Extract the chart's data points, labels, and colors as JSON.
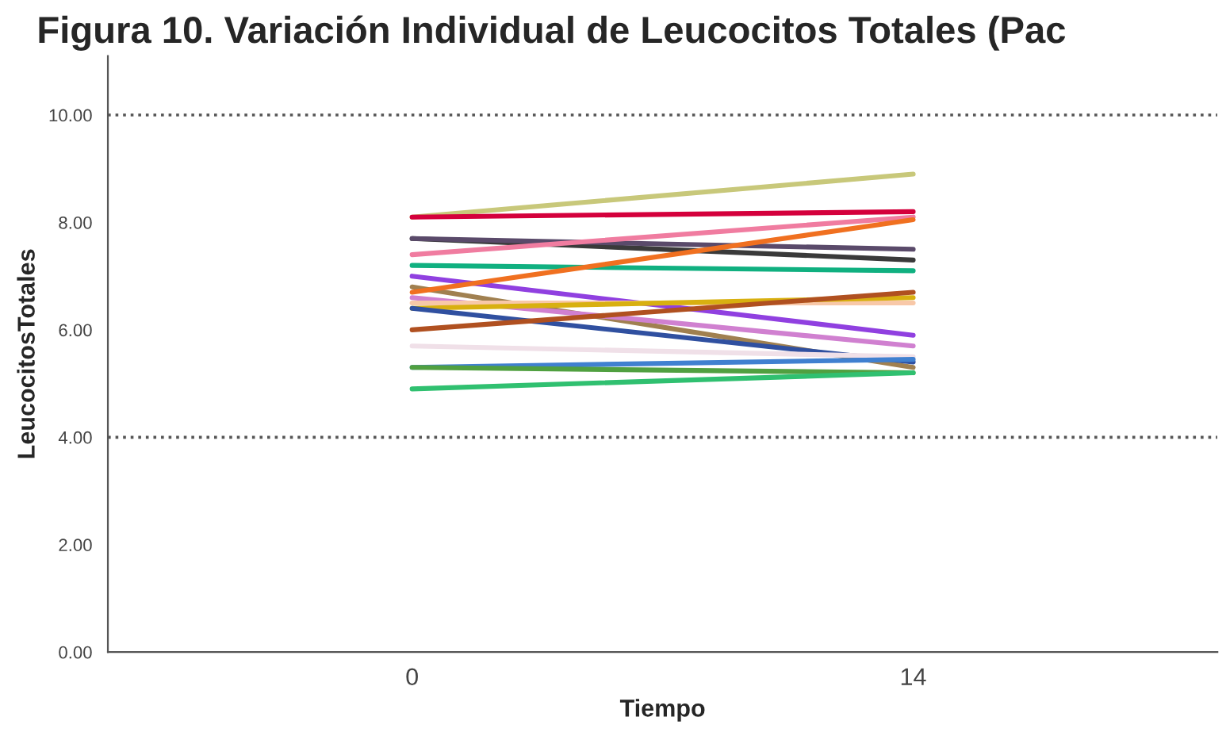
{
  "chart_data": {
    "type": "line",
    "title": "Figura 10. Variación Individual de Leucocitos Totales (Pac",
    "xlabel": "Tiempo",
    "ylabel": "LeucocitosTotales",
    "x": [
      0,
      14
    ],
    "xlim": [
      -8.5,
      22.5
    ],
    "xticks": [
      0,
      14
    ],
    "ylim": [
      0,
      11.1
    ],
    "yticks": [
      {
        "value": 0,
        "label": "0.00"
      },
      {
        "value": 2,
        "label": "2.00"
      },
      {
        "value": 4,
        "label": "4.00"
      },
      {
        "value": 6,
        "label": "6.00"
      },
      {
        "value": 8,
        "label": "8.00"
      },
      {
        "value": 10,
        "label": "10.00"
      }
    ],
    "grid": false,
    "legend": false,
    "marker": "none",
    "line_style": "solid",
    "ref_lines": [
      {
        "axis": "y",
        "value": 10,
        "color": "#555555",
        "line_style": "dotted"
      },
      {
        "axis": "y",
        "value": 4,
        "color": "#555555",
        "line_style": "dotted"
      }
    ],
    "series": [
      {
        "color": "#c8c87a",
        "values": [
          8.1,
          8.9
        ]
      },
      {
        "color": "#d4003c",
        "values": [
          8.1,
          8.2
        ]
      },
      {
        "color": "#3a3a3a",
        "values": [
          7.7,
          7.3
        ]
      },
      {
        "color": "#5a4a6a",
        "values": [
          7.7,
          7.5
        ]
      },
      {
        "color": "#f07ca0",
        "values": [
          7.4,
          8.1
        ]
      },
      {
        "color": "#10b080",
        "values": [
          7.2,
          7.1
        ]
      },
      {
        "color": "#9040e0",
        "values": [
          7.0,
          5.9
        ]
      },
      {
        "color": "#a08050",
        "values": [
          6.8,
          5.3
        ]
      },
      {
        "color": "#f07020",
        "values": [
          6.7,
          8.05
        ]
      },
      {
        "color": "#d080d0",
        "values": [
          6.6,
          5.7
        ]
      },
      {
        "color": "#f8c8a8",
        "values": [
          6.5,
          6.5
        ]
      },
      {
        "color": "#d8b010",
        "values": [
          6.4,
          6.6
        ]
      },
      {
        "color": "#3050a0",
        "values": [
          6.4,
          5.4
        ]
      },
      {
        "color": "#b05020",
        "values": [
          6.0,
          6.7
        ]
      },
      {
        "color": "#f0e0e8",
        "values": [
          5.7,
          5.5
        ]
      },
      {
        "color": "#4080d0",
        "values": [
          5.3,
          5.45
        ]
      },
      {
        "color": "#50a040",
        "values": [
          5.3,
          5.2
        ]
      },
      {
        "color": "#30c070",
        "values": [
          4.9,
          5.2
        ]
      }
    ]
  }
}
